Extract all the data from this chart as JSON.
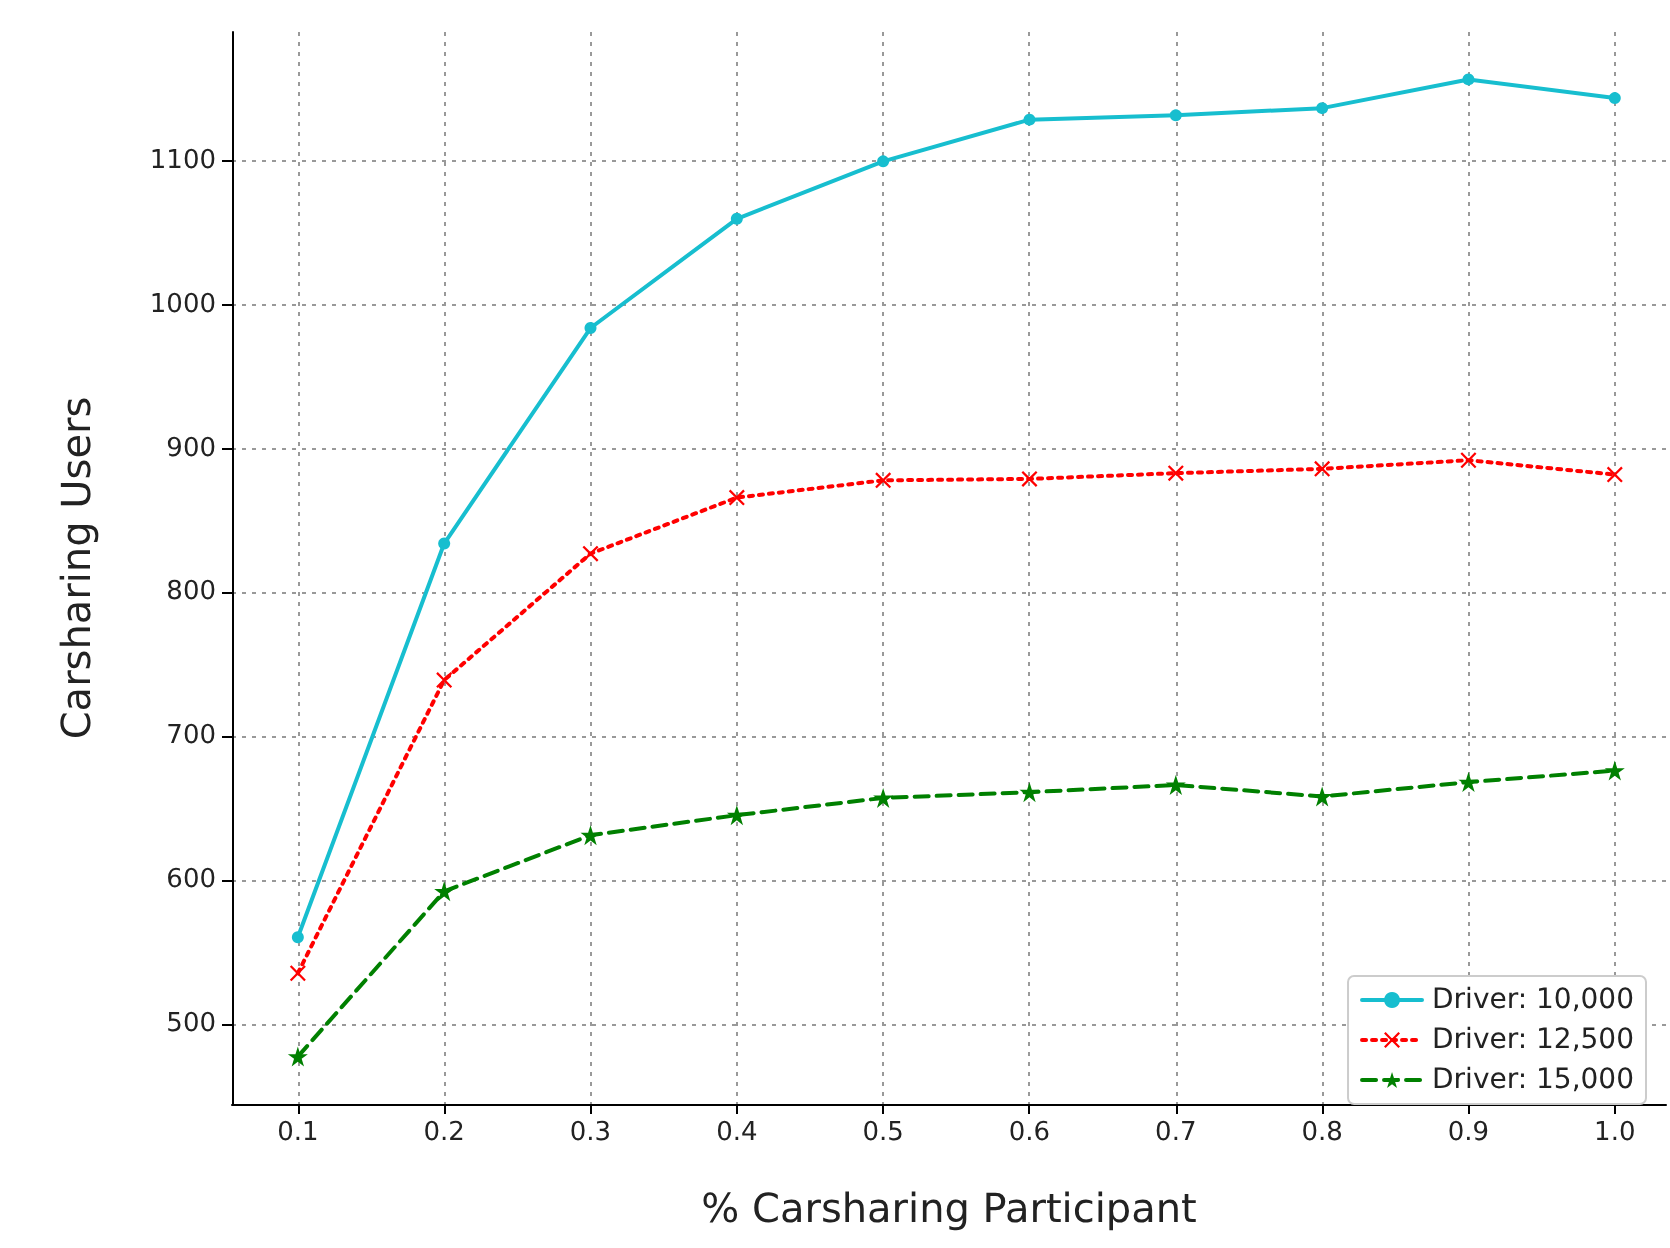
{
  "chart_data": {
    "type": "line",
    "xlabel": "% Carsharing Participant",
    "ylabel": "Carsharing Users",
    "x": [
      0.1,
      0.2,
      0.3,
      0.4,
      0.5,
      0.6,
      0.7,
      0.8,
      0.9,
      1.0
    ],
    "xlim": [
      0.055,
      1.035
    ],
    "xticks": [
      0.1,
      0.2,
      0.3,
      0.4,
      0.5,
      0.6,
      0.7,
      0.8,
      0.9,
      {
        "value": 1.0,
        "label": "1.0"
      }
    ],
    "ylim": [
      444,
      1190
    ],
    "yticks": [
      500,
      600,
      700,
      800,
      900,
      1000,
      1100
    ],
    "grid": true,
    "legend": "bottom right",
    "series": [
      {
        "name": "Driver: 10,000",
        "color": "#17becf",
        "marker": "circle",
        "line_style": "solid",
        "values": [
          560,
          834,
          984,
          1060,
          1100,
          1129,
          1132,
          1137,
          1157,
          1144
        ]
      },
      {
        "name": "Driver: 12,500",
        "color": "#ff0000",
        "marker": "cross",
        "line_style": "dotted",
        "values": [
          535,
          739,
          827,
          866,
          878,
          879,
          883,
          886,
          892,
          882
        ]
      },
      {
        "name": "Driver: 15,000",
        "color": "#008000",
        "marker": "star",
        "line_style": "dashed",
        "values": [
          477,
          592,
          631,
          645,
          657,
          661,
          666,
          658,
          668,
          676
        ]
      }
    ]
  }
}
